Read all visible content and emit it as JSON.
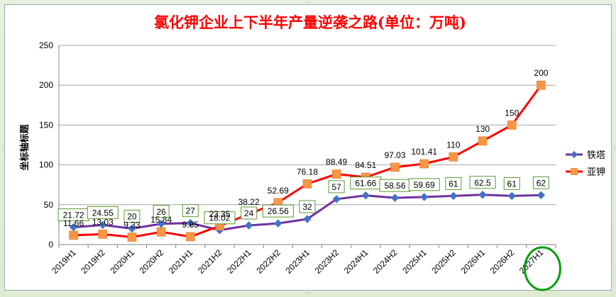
{
  "chart_data": {
    "type": "line",
    "title": "氯化钾企业上下半年产量逆袭之路(单位：万吨)",
    "ylabel": "坐标轴标题",
    "xlabel": "",
    "ylim": [
      0,
      250
    ],
    "yticks": [
      0,
      50,
      100,
      150,
      200,
      250
    ],
    "grid": true,
    "legend_position": "right",
    "categories": [
      "2019H1",
      "2019H2",
      "2020H1",
      "2020H2",
      "2021H1",
      "2021H2",
      "2022H1",
      "2022H2",
      "2023H1",
      "2023H2",
      "2024H1",
      "2024H2",
      "2025H1",
      "2025H2",
      "2026H1",
      "2026H2",
      "2027H1"
    ],
    "series": [
      {
        "name": "铁塔",
        "color": "#7030a0",
        "marker": "diamond",
        "marker_color": "#4472c4",
        "values": [
          21.72,
          24.55,
          20,
          26,
          27,
          18.02,
          24,
          26.56,
          32,
          57,
          61.66,
          58.56,
          59.69,
          61,
          62.5,
          61,
          62
        ],
        "labels": [
          "21.72",
          "24.55",
          "20",
          "26",
          "27",
          "18.02",
          "24",
          "26.56",
          "32",
          "57",
          "61.66",
          "58.56",
          "59.69",
          "61",
          "62.5",
          "61",
          "62"
        ]
      },
      {
        "name": "亚钾",
        "color": "#ff0000",
        "marker": "square",
        "marker_color": "#f79646",
        "values": [
          11.66,
          13.03,
          9.33,
          15.84,
          9.85,
          23.35,
          38.22,
          52.69,
          76.18,
          88.49,
          84.51,
          97.03,
          101.41,
          110,
          130,
          150,
          200
        ],
        "labels": [
          "11.66",
          "13.03",
          "9.33",
          "15.84",
          "9.85",
          "23.35",
          "38.22",
          "52.69",
          "76.18",
          "88.49",
          "84.51",
          "97.03",
          "101.41",
          "110",
          "130",
          "150",
          "200"
        ]
      }
    ],
    "annotation": {
      "type": "circle",
      "color": "#00a000",
      "category": "2027H1"
    }
  }
}
